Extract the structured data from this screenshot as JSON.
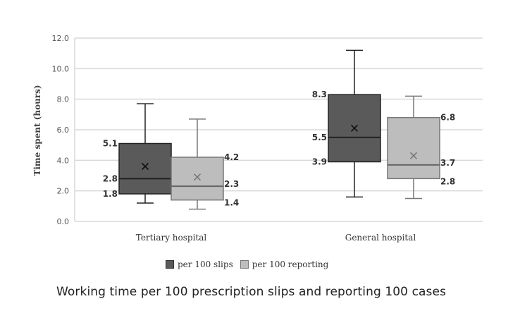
{
  "chart_data": {
    "type": "box",
    "title": "",
    "caption": "Working time per 100 prescription slips and reporting 100 cases",
    "ylabel": "Time spent (hours)",
    "xlabel": "",
    "ylim": [
      0,
      12
    ],
    "yticks": [
      "0.0",
      "2.0",
      "4.0",
      "6.0",
      "8.0",
      "10.0",
      "12.0"
    ],
    "ytick_values": [
      0,
      2,
      4,
      6,
      8,
      10,
      12
    ],
    "grid": true,
    "categories": [
      "Tertiary hospital",
      "General hospital"
    ],
    "legend_position": "bottom",
    "series": [
      {
        "name": "per 100 slips",
        "color": "#5a5a5a",
        "median_color": "#222222",
        "boxes": [
          {
            "whisker_low": 1.2,
            "q1": 1.8,
            "median": 2.8,
            "q3": 5.1,
            "whisker_high": 7.7,
            "mean": 3.6,
            "labels": {
              "q3": "5.1",
              "median": "2.8",
              "q1": "1.8"
            },
            "label_side": "left"
          },
          {
            "whisker_low": 1.6,
            "q1": 3.9,
            "median": 5.5,
            "q3": 8.3,
            "whisker_high": 11.2,
            "mean": 6.1,
            "labels": {
              "q3": "8.3",
              "median": "5.5",
              "q1": "3.9"
            },
            "label_side": "left"
          }
        ]
      },
      {
        "name": "per 100 reporting",
        "color": "#bdbdbd",
        "median_color": "#666666",
        "boxes": [
          {
            "whisker_low": 0.8,
            "q1": 1.4,
            "median": 2.3,
            "q3": 4.2,
            "whisker_high": 6.7,
            "mean": 2.9,
            "labels": {
              "q3": "4.2",
              "median": "2.3",
              "q1": "1.4"
            },
            "label_side": "right"
          },
          {
            "whisker_low": 1.5,
            "q1": 2.8,
            "median": 3.7,
            "q3": 6.8,
            "whisker_high": 8.2,
            "mean": 4.3,
            "labels": {
              "q3": "6.8",
              "median": "3.7",
              "q1": "2.8"
            },
            "label_side": "right"
          }
        ]
      }
    ]
  },
  "legend": {
    "items": [
      {
        "label": "per 100 slips",
        "color": "#5a5a5a"
      },
      {
        "label": "per 100 reporting",
        "color": "#bdbdbd"
      }
    ]
  }
}
